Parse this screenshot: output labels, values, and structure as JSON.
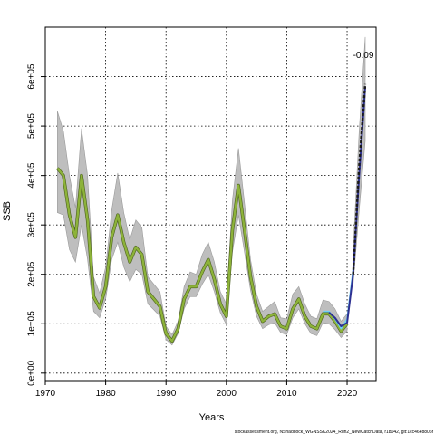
{
  "chart_data": {
    "type": "line",
    "title": "",
    "xlabel": "Years",
    "ylabel": "SSB",
    "xlim": [
      1970,
      2024.8
    ],
    "ylim": [
      -15000,
      700000
    ],
    "xticks": [
      1970,
      1980,
      1990,
      2000,
      2010,
      2020
    ],
    "xtick_labels": [
      "1970",
      "1980",
      "1990",
      "2000",
      "2010",
      "2020"
    ],
    "yticks": [
      0,
      100000,
      200000,
      300000,
      400000,
      500000,
      600000
    ],
    "ytick_labels": [
      "0e+00",
      "1e+05",
      "2e+05",
      "3e+05",
      "4e+05",
      "5e+05",
      "6e+05"
    ],
    "grid": true,
    "annotation": "-0.09",
    "caption": "stockassessment.org, NShaddock_WGNSSK2024_Run2_NewCatchData, r18042, git:1cc464b806f",
    "x": [
      1972,
      1973,
      1974,
      1975,
      1976,
      1977,
      1978,
      1979,
      1980,
      1981,
      1982,
      1983,
      1984,
      1985,
      1986,
      1987,
      1988,
      1989,
      1990,
      1991,
      1992,
      1993,
      1994,
      1995,
      1996,
      1997,
      1998,
      1999,
      2000,
      2001,
      2002,
      2003,
      2004,
      2005,
      2006,
      2007,
      2008,
      2009,
      2010,
      2011,
      2012,
      2013,
      2014,
      2015,
      2016,
      2017,
      2018,
      2019,
      2020
    ],
    "series": [
      {
        "values": [
          415000,
          400000,
          320000,
          275000,
          400000,
          310000,
          155000,
          132000,
          175000,
          275000,
          320000,
          265000,
          225000,
          255000,
          240000,
          165000,
          150000,
          135000,
          80000,
          65000,
          90000,
          150000,
          175000,
          175000,
          205000,
          230000,
          190000,
          140000,
          115000,
          290000,
          380000,
          290000,
          195000,
          135000,
          105000,
          115000,
          120000,
          95000,
          90000,
          130000,
          150000,
          115000,
          95000,
          90000,
          120000,
          120000,
          105000,
          85000,
          100000
        ],
        "lower": [
          325000,
          320000,
          250000,
          225000,
          300000,
          230000,
          125000,
          112000,
          150000,
          230000,
          265000,
          215000,
          185000,
          210000,
          200000,
          140000,
          128000,
          115000,
          68000,
          57000,
          80000,
          130000,
          155000,
          155000,
          180000,
          200000,
          165000,
          122000,
          98000,
          245000,
          320000,
          245000,
          168000,
          115000,
          90000,
          98000,
          102000,
          82000,
          78000,
          112000,
          130000,
          100000,
          80000,
          76000,
          102000,
          100000,
          88000,
          72000,
          85000
        ],
        "upper": [
          530000,
          490000,
          400000,
          335000,
          495000,
          400000,
          195000,
          162000,
          215000,
          330000,
          405000,
          325000,
          270000,
          310000,
          295000,
          195000,
          180000,
          165000,
          95000,
          78000,
          105000,
          175000,
          205000,
          200000,
          240000,
          265000,
          225000,
          165000,
          140000,
          350000,
          455000,
          345000,
          230000,
          160000,
          125000,
          135000,
          145000,
          112000,
          110000,
          160000,
          175000,
          140000,
          115000,
          110000,
          148000,
          145000,
          130000,
          105000,
          120000
        ]
      },
      {
        "x": [
          2016,
          2017,
          2018,
          2019,
          2020,
          2021
        ],
        "values": [
          125000,
          125000,
          110000,
          90000,
          110000,
          210000
        ]
      },
      {
        "x": [
          2017,
          2018,
          2019,
          2020,
          2021,
          2022,
          2023
        ],
        "values": [
          123000,
          112000,
          95000,
          102000,
          200000,
          400000,
          580000
        ]
      }
    ],
    "forecast_band": {
      "x": [
        2021,
        2022,
        2023
      ],
      "lower": [
        180000,
        330000,
        470000
      ],
      "upper": [
        250000,
        490000,
        680000
      ]
    },
    "forecast_line": {
      "x": [
        2021,
        2022,
        2023
      ],
      "values": [
        200000,
        420000,
        585000
      ]
    },
    "colors": {
      "band": "#bebebe",
      "band_edge": "#9a9a9a",
      "main_line": "#8db33a",
      "series_1": "#6dcff6",
      "series_2": "#2e3192",
      "forecast": "#1a1a1a",
      "grid": "#000000"
    }
  }
}
